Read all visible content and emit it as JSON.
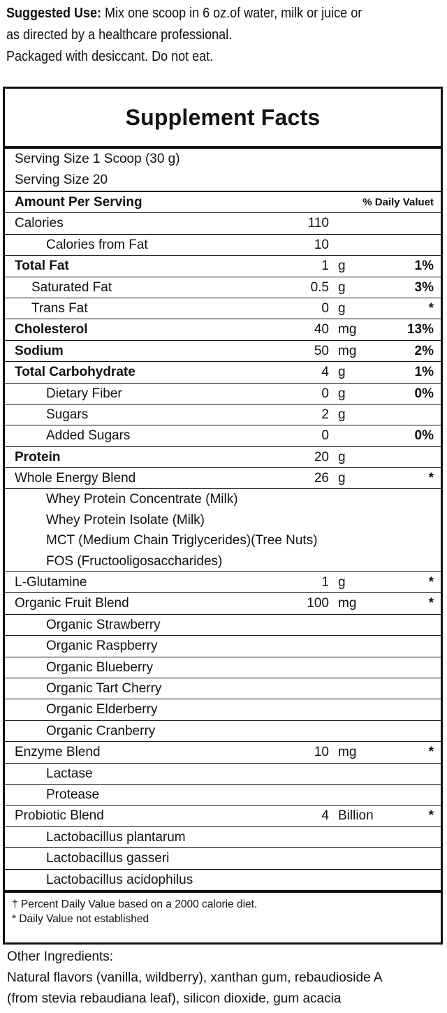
{
  "suggested_use": {
    "label": "Suggested Use:",
    "text_line1": " Mix one scoop in 6 oz.of water, milk or juice or",
    "text_line2": "as directed by a healthcare professional.",
    "text_line3": "Packaged with desiccant. Do not eat."
  },
  "panel": {
    "title": "Supplement Facts",
    "serving_size": "Serving Size 1 Scoop (30 g)",
    "servings": "Serving Size 20",
    "amount_header": "Amount Per Serving",
    "dv_header": "% Daily Valuet",
    "rows": [
      {
        "name": "Calories",
        "amount": "110",
        "unit": "",
        "dv": "",
        "style": "plain"
      },
      {
        "name": "Calories from Fat",
        "amount": "10",
        "unit": "",
        "dv": "",
        "style": "ind2"
      },
      {
        "name": "Total Fat",
        "amount": "1",
        "unit": "g",
        "dv": "1%",
        "style": "bold"
      },
      {
        "name": "Saturated Fat",
        "amount": "0.5",
        "unit": "g",
        "dv": "3%",
        "style": "ind1"
      },
      {
        "name": "Trans Fat",
        "amount": "0",
        "unit": "g",
        "dv": "*",
        "style": "ind1"
      },
      {
        "name": "Cholesterol",
        "amount": "40",
        "unit": "mg",
        "dv": "13%",
        "style": "bold"
      },
      {
        "name": "Sodium",
        "amount": "50",
        "unit": "mg",
        "dv": "2%",
        "style": "bold"
      },
      {
        "name": "Total Carbohydrate",
        "amount": "4",
        "unit": "g",
        "dv": "1%",
        "style": "bold"
      },
      {
        "name": "Dietary Fiber",
        "amount": "0",
        "unit": "g",
        "dv": "0%",
        "style": "ind2"
      },
      {
        "name": "Sugars",
        "amount": "2",
        "unit": "g",
        "dv": "",
        "style": "ind2"
      },
      {
        "name": "Added Sugars",
        "amount": "0",
        "unit": "",
        "dv": "0%",
        "style": "ind2"
      },
      {
        "name": "Protein",
        "amount": "20",
        "unit": "g",
        "dv": "",
        "style": "bold"
      },
      {
        "name": "Whole Energy Blend",
        "amount": "26",
        "unit": "g",
        "dv": "*",
        "style": "plain"
      },
      {
        "name": "Whey Protein Concentrate (Milk)",
        "amount": "",
        "unit": "",
        "dv": "",
        "style": "ind2 noline"
      },
      {
        "name": "Whey Protein Isolate (Milk)",
        "amount": "",
        "unit": "",
        "dv": "",
        "style": "ind2 noline"
      },
      {
        "name": "MCT (Medium Chain Triglycerides)(Tree Nuts)",
        "amount": "",
        "unit": "",
        "dv": "",
        "style": "ind2 noline"
      },
      {
        "name": "FOS (Fructooligosaccharides)",
        "amount": "",
        "unit": "",
        "dv": "",
        "style": "ind2"
      },
      {
        "name": "L-Glutamine",
        "amount": "1",
        "unit": "g",
        "dv": "*",
        "style": "plain"
      },
      {
        "name": "Organic Fruit Blend",
        "amount": "100",
        "unit": "mg",
        "dv": "*",
        "style": "plain"
      },
      {
        "name": "Organic Strawberry",
        "amount": "",
        "unit": "",
        "dv": "",
        "style": "ind2"
      },
      {
        "name": "Organic Raspberry",
        "amount": "",
        "unit": "",
        "dv": "",
        "style": "ind2"
      },
      {
        "name": "Organic Blueberry",
        "amount": "",
        "unit": "",
        "dv": "",
        "style": "ind2"
      },
      {
        "name": "Organic Tart Cherry",
        "amount": "",
        "unit": "",
        "dv": "",
        "style": "ind2"
      },
      {
        "name": "Organic Elderberry",
        "amount": "",
        "unit": "",
        "dv": "",
        "style": "ind2"
      },
      {
        "name": "Organic Cranberry",
        "amount": "",
        "unit": "",
        "dv": "",
        "style": "ind2"
      },
      {
        "name": "Enzyme Blend",
        "amount": "10",
        "unit": "mg",
        "dv": "*",
        "style": "plain"
      },
      {
        "name": "Lactase",
        "amount": "",
        "unit": "",
        "dv": "",
        "style": "ind2"
      },
      {
        "name": "Protease",
        "amount": "",
        "unit": "",
        "dv": "",
        "style": "ind2"
      },
      {
        "name": "Probiotic Blend",
        "amount": "4",
        "unit": "Billion",
        "dv": "*",
        "style": "plain"
      },
      {
        "name": "Lactobacillus plantarum",
        "amount": "",
        "unit": "",
        "dv": "",
        "style": "ind2"
      },
      {
        "name": "Lactobacillus gasseri",
        "amount": "",
        "unit": "",
        "dv": "",
        "style": "ind2"
      },
      {
        "name": "Lactobacillus acidophilus",
        "amount": "",
        "unit": "",
        "dv": "",
        "style": "ind2 last"
      }
    ],
    "footnote_line1": "† Percent Daily Value based on a 2000 calorie diet.",
    "footnote_line2": "* Daily Value not established"
  },
  "other_ingredients": {
    "label": "Other Ingredients:",
    "line1": "Natural flavors (vanilla, wildberry), xanthan gum, rebaudioside A",
    "line2": "(from stevia rebaudiana leaf), silicon dioxide, gum acacia"
  }
}
